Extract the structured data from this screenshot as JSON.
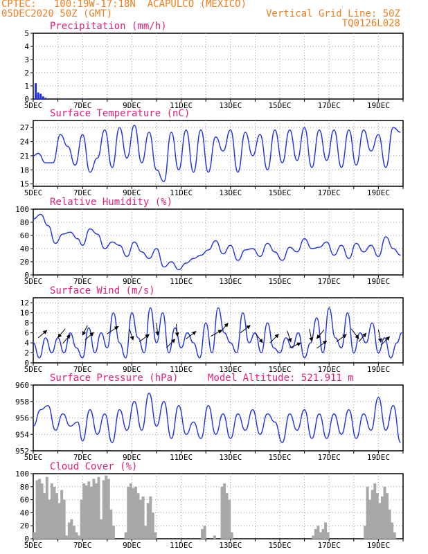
{
  "header": {
    "line1_left": "CPTEC:   100:19W-17:18N  ACAPULCO (MEXICO)",
    "line2_left": "05DEC2020 50Z (GMT)",
    "line2_right": "Vertical Grid Line: 50Z",
    "line3_right": "TQ0126L028"
  },
  "colors": {
    "line": "#2233dd",
    "title": "#e0207a",
    "header": "#f08020",
    "cloud": "#a8a8a8",
    "grid": "#999999"
  },
  "x_labels": [
    "5DEC",
    "7DEC",
    "9DEC",
    "11DEC",
    "13DEC",
    "15DEC",
    "17DEC",
    "19DEC"
  ],
  "chart_data": [
    {
      "type": "bar",
      "title": "Precipitation (mm/h)",
      "ylim": [
        0,
        5
      ],
      "yticks": [
        "0",
        "1",
        "2",
        "3",
        "4",
        "5"
      ],
      "x": [
        5.1,
        5.2,
        5.3,
        5.4,
        5.5,
        6.3,
        7.1
      ],
      "values": [
        1.2,
        0.5,
        0.4,
        0.2,
        0.1,
        0.05,
        0.03
      ]
    },
    {
      "type": "line",
      "title": "Surface Temperature (nC)",
      "ylim": [
        14.5,
        28.5
      ],
      "yticks": [
        "15",
        "18",
        "21",
        "24",
        "27"
      ],
      "x": [
        5,
        5.2,
        5.5,
        5.8,
        6.1,
        6.4,
        6.7,
        7.0,
        7.3,
        7.6,
        7.9,
        8.2,
        8.5,
        8.8,
        9.1,
        9.4,
        9.7,
        10.0,
        10.3,
        10.6,
        10.9,
        11.2,
        11.5,
        11.8,
        12.1,
        12.4,
        12.7,
        13.0,
        13.3,
        13.6,
        13.9,
        14.2,
        14.5,
        14.8,
        15.1,
        15.4,
        15.7,
        16.0,
        16.3,
        16.6,
        16.9,
        17.2,
        17.5,
        17.8,
        18.1,
        18.4,
        18.7,
        19.0,
        19.3,
        19.6,
        19.9
      ],
      "values": [
        21,
        21.5,
        19.5,
        19.5,
        25.5,
        23,
        19,
        25.5,
        17.5,
        20.5,
        26.5,
        18.5,
        27,
        20.5,
        27.5,
        19.5,
        26,
        18,
        15.5,
        26,
        18,
        26.5,
        17.5,
        26.5,
        17.5,
        25,
        22,
        26.5,
        17.5,
        26,
        21,
        25.5,
        18,
        26.5,
        19.5,
        26.5,
        20,
        27,
        18.5,
        26.5,
        20,
        26.5,
        18.5,
        26.5,
        19,
        26.5,
        22,
        25.5,
        18.5,
        27,
        26
      ]
    },
    {
      "type": "line",
      "title": "Relative Humidity (%)",
      "ylim": [
        0,
        100
      ],
      "yticks": [
        "0",
        "20",
        "40",
        "60",
        "80",
        "100"
      ],
      "x": [
        5,
        5.3,
        5.6,
        5.9,
        6.2,
        6.5,
        6.8,
        7.0,
        7.3,
        7.6,
        7.9,
        8.2,
        8.5,
        8.8,
        9.1,
        9.4,
        9.7,
        10.0,
        10.3,
        10.6,
        10.9,
        11.2,
        11.5,
        11.8,
        12.1,
        12.4,
        12.7,
        13.0,
        13.3,
        13.6,
        13.9,
        14.2,
        14.5,
        14.8,
        15.1,
        15.4,
        15.7,
        16.0,
        16.3,
        16.6,
        16.9,
        17.2,
        17.5,
        17.8,
        18.1,
        18.4,
        18.7,
        19.0,
        19.3,
        19.6,
        19.9
      ],
      "values": [
        85,
        92,
        75,
        48,
        62,
        65,
        55,
        45,
        70,
        62,
        40,
        50,
        45,
        28,
        50,
        35,
        25,
        40,
        12,
        20,
        8,
        18,
        25,
        30,
        38,
        52,
        32,
        45,
        22,
        38,
        40,
        28,
        48,
        35,
        22,
        42,
        35,
        55,
        40,
        42,
        50,
        30,
        45,
        25,
        48,
        35,
        45,
        28,
        58,
        40,
        30
      ]
    },
    {
      "type": "line",
      "title": "Surface Wind (m/s)",
      "ylim": [
        0,
        13
      ],
      "yticks": [
        "0",
        "2",
        "4",
        "6",
        "8",
        "10",
        "12"
      ],
      "x": [
        5,
        5.25,
        5.5,
        5.75,
        6.0,
        6.25,
        6.5,
        6.75,
        7.0,
        7.25,
        7.5,
        7.75,
        8.0,
        8.25,
        8.5,
        8.75,
        9.0,
        9.25,
        9.5,
        9.75,
        10.0,
        10.25,
        10.5,
        10.75,
        11.0,
        11.25,
        11.5,
        11.75,
        12.0,
        12.25,
        12.5,
        12.75,
        13.0,
        13.25,
        13.5,
        13.75,
        14.0,
        14.25,
        14.5,
        14.75,
        15.0,
        15.25,
        15.5,
        15.75,
        16.0,
        16.25,
        16.5,
        16.75,
        17.0,
        17.25,
        17.5,
        17.75,
        18.0,
        18.25,
        18.5,
        18.75,
        19.0,
        19.25,
        19.5,
        19.75,
        19.95
      ],
      "values": [
        4,
        1,
        5,
        2,
        5,
        2,
        6,
        3,
        1,
        7,
        2,
        6,
        3,
        10,
        4,
        1,
        10,
        5,
        2,
        11,
        4,
        10,
        2,
        7,
        3,
        6,
        4,
        1,
        8,
        2,
        11,
        6,
        4,
        2,
        10,
        4,
        6,
        2,
        8,
        3,
        2,
        5,
        3,
        6,
        1,
        4,
        9,
        2,
        11,
        5,
        3,
        10,
        2,
        6,
        4,
        8,
        2,
        5,
        1,
        4,
        6
      ],
      "arrows": [
        {
          "x": 5.2,
          "y": 5.0,
          "u": 0.7,
          "v": 0.6
        },
        {
          "x": 6.3,
          "y": 6.8,
          "u": -0.6,
          "v": -0.7
        },
        {
          "x": 6.2,
          "y": 3.9,
          "u": 0.6,
          "v": 0.7
        },
        {
          "x": 7.2,
          "y": 7.5,
          "u": -0.4,
          "v": -0.8
        },
        {
          "x": 7.1,
          "y": 4.6,
          "u": 0.7,
          "v": 0.6
        },
        {
          "x": 8.0,
          "y": 5.8,
          "u": 0.9,
          "v": 0.6
        },
        {
          "x": 8.9,
          "y": 6.8,
          "u": 0.3,
          "v": -0.9
        },
        {
          "x": 9.3,
          "y": 4.2,
          "u": 0.8,
          "v": 0.6
        },
        {
          "x": 10.0,
          "y": 8.0,
          "u": 0.1,
          "v": -1.0
        },
        {
          "x": 10.4,
          "y": 3.0,
          "u": 0.7,
          "v": 0.7
        },
        {
          "x": 10.8,
          "y": 7.8,
          "u": 0.1,
          "v": -1.0
        },
        {
          "x": 11.2,
          "y": 4.8,
          "u": 0.8,
          "v": 0.6
        },
        {
          "x": 12.2,
          "y": 5.3,
          "u": 0.9,
          "v": 0.5
        },
        {
          "x": 12.6,
          "y": 6.2,
          "u": 0.6,
          "v": 0.7
        },
        {
          "x": 13.4,
          "y": 6.0,
          "u": 0.8,
          "v": 0.6
        },
        {
          "x": 14.0,
          "y": 6.0,
          "u": 0.6,
          "v": -0.8
        },
        {
          "x": 14.6,
          "y": 4.0,
          "u": 0.7,
          "v": 0.7
        },
        {
          "x": 15.3,
          "y": 6.4,
          "u": 0.3,
          "v": -0.9
        },
        {
          "x": 15.4,
          "y": 3.0,
          "u": 0.9,
          "v": 0.4
        },
        {
          "x": 16.2,
          "y": 6.8,
          "u": 0.2,
          "v": -1.0
        },
        {
          "x": 16.5,
          "y": 2.9,
          "u": 0.8,
          "v": 0.6
        },
        {
          "x": 16.8,
          "y": 6.6,
          "u": -0.6,
          "v": -0.7
        },
        {
          "x": 17.3,
          "y": 4.2,
          "u": 0.8,
          "v": 0.6
        },
        {
          "x": 17.9,
          "y": 6.8,
          "u": 0.6,
          "v": -0.8
        },
        {
          "x": 18.2,
          "y": 4.2,
          "u": 0.6,
          "v": 0.7
        },
        {
          "x": 19.0,
          "y": 6.6,
          "u": 0.2,
          "v": -1.0
        },
        {
          "x": 19.1,
          "y": 3.5,
          "u": 0.7,
          "v": 0.7
        }
      ]
    },
    {
      "type": "line",
      "title": "Surface Pressure (hPa)",
      "subtitle": "Model Altitude: 521.911 m",
      "ylim": [
        952,
        960
      ],
      "yticks": [
        "952",
        "954",
        "956",
        "958",
        "960"
      ],
      "x": [
        5,
        5.3,
        5.6,
        5.9,
        6.2,
        6.5,
        6.8,
        7.0,
        7.3,
        7.6,
        7.9,
        8.2,
        8.5,
        8.8,
        9.1,
        9.4,
        9.7,
        10.0,
        10.3,
        10.6,
        10.9,
        11.2,
        11.5,
        11.8,
        12.1,
        12.4,
        12.7,
        13.0,
        13.3,
        13.6,
        13.9,
        14.2,
        14.5,
        14.8,
        15.1,
        15.4,
        15.7,
        16.0,
        16.3,
        16.6,
        16.9,
        17.2,
        17.5,
        17.8,
        18.1,
        18.4,
        18.7,
        19.0,
        19.3,
        19.6,
        19.9
      ],
      "values": [
        955,
        957,
        957.5,
        954.5,
        956.5,
        955,
        955.5,
        953.2,
        957,
        954,
        956.5,
        953,
        957,
        954.5,
        958,
        954.5,
        959,
        955,
        958,
        953.5,
        957.5,
        954,
        955.5,
        953.5,
        957.5,
        954,
        956.5,
        953.5,
        956.5,
        954.5,
        957,
        954,
        956.5,
        955.5,
        953,
        956.5,
        954.5,
        957,
        953.5,
        956.5,
        953.5,
        956.5,
        954,
        957,
        953.5,
        956.5,
        954.5,
        958.5,
        954.5,
        957.5,
        953
      ]
    },
    {
      "type": "area",
      "title": "Cloud Cover (%)",
      "ylim": [
        0,
        100
      ],
      "yticks": [
        "0",
        "20",
        "40",
        "60",
        "80",
        "100"
      ],
      "x": [
        5.0,
        5.1,
        5.2,
        5.3,
        5.4,
        5.5,
        5.6,
        5.7,
        5.8,
        5.9,
        6.0,
        6.1,
        6.2,
        6.3,
        6.4,
        6.5,
        6.6,
        6.7,
        6.8,
        6.9,
        7.0,
        7.1,
        7.2,
        7.3,
        7.4,
        7.5,
        7.6,
        7.7,
        7.8,
        7.9,
        8.0,
        8.1,
        8.2,
        8.3,
        8.4,
        8.5,
        8.6,
        8.7,
        8.8,
        8.9,
        9.0,
        9.1,
        9.2,
        9.3,
        9.4,
        9.5,
        9.6,
        9.7,
        9.8,
        9.9,
        10.0,
        10.1,
        10.2,
        10.3,
        10.4,
        10.5,
        10.6,
        10.7,
        10.8,
        10.9,
        11.0,
        11.1,
        11.2,
        11.3,
        11.4,
        11.5,
        11.6,
        11.7,
        11.8,
        11.9,
        12.0,
        12.1,
        12.2,
        12.3,
        12.4,
        12.5,
        12.6,
        12.7,
        12.8,
        12.9,
        13.0,
        13.1,
        13.2,
        13.3,
        13.4,
        13.5,
        13.6,
        13.7,
        13.8,
        13.9,
        14.0,
        14.1,
        14.2,
        14.3,
        14.4,
        14.5,
        14.6,
        14.7,
        14.8,
        14.9,
        15.0,
        15.1,
        15.2,
        15.3,
        15.4,
        15.5,
        15.6,
        15.7,
        15.8,
        15.9,
        16.0,
        16.1,
        16.2,
        16.3,
        16.4,
        16.5,
        16.6,
        16.7,
        16.8,
        16.9,
        17.0,
        17.1,
        17.2,
        17.3,
        17.4,
        17.5,
        17.6,
        17.7,
        17.8,
        17.9,
        18.0,
        18.1,
        18.2,
        18.3,
        18.4,
        18.5,
        18.6,
        18.7,
        18.8,
        18.9,
        19.0,
        19.1,
        19.2,
        19.3,
        19.4,
        19.5,
        19.6,
        19.7,
        19.8,
        19.9
      ],
      "values": [
        10,
        90,
        92,
        85,
        70,
        95,
        60,
        85,
        80,
        70,
        55,
        75,
        60,
        5,
        25,
        30,
        20,
        10,
        5,
        60,
        85,
        82,
        88,
        80,
        92,
        85,
        95,
        30,
        90,
        97,
        92,
        45,
        20,
        0,
        0,
        0,
        0,
        10,
        80,
        85,
        78,
        80,
        70,
        60,
        65,
        20,
        55,
        65,
        40,
        10,
        0,
        0,
        0,
        0,
        0,
        0,
        0,
        0,
        0,
        0,
        0,
        0,
        0,
        0,
        0,
        0,
        0,
        0,
        15,
        20,
        0,
        0,
        0,
        5,
        0,
        0,
        80,
        85,
        70,
        60,
        10,
        0,
        0,
        0,
        0,
        0,
        0,
        0,
        0,
        0,
        0,
        0,
        0,
        0,
        0,
        0,
        0,
        0,
        0,
        0,
        0,
        0,
        0,
        0,
        0,
        0,
        0,
        0,
        0,
        0,
        0,
        0,
        0,
        5,
        15,
        20,
        10,
        15,
        25,
        10,
        0,
        0,
        0,
        0,
        0,
        0,
        0,
        0,
        0,
        0,
        0,
        0,
        0,
        0,
        20,
        80,
        60,
        75,
        85,
        70,
        55,
        65,
        80,
        70,
        45,
        25,
        10,
        0,
        0,
        0
      ]
    }
  ]
}
